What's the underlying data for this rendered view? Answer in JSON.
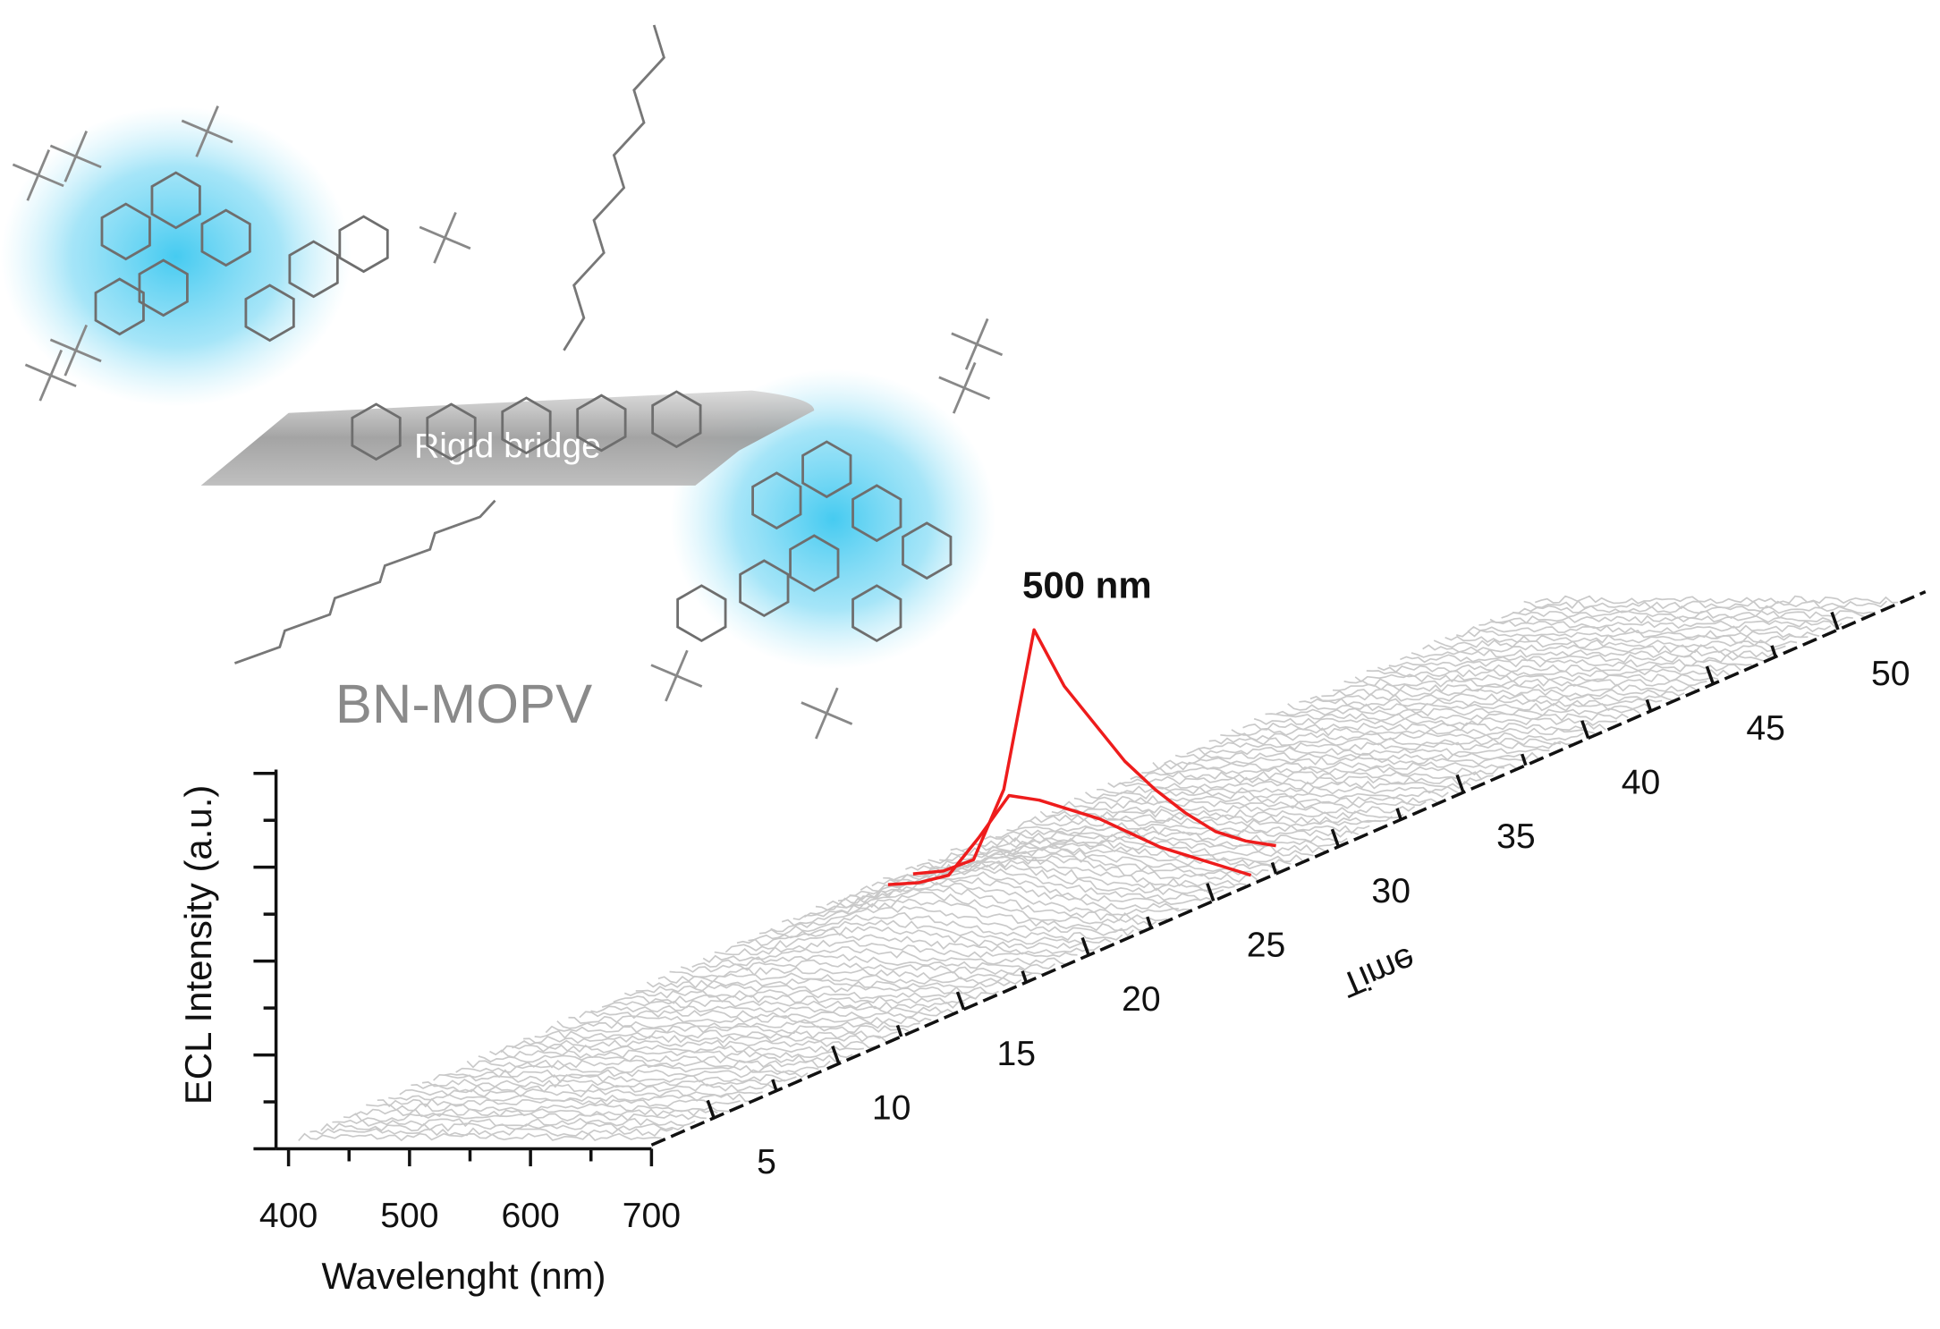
{
  "labels": {
    "molecule": "BN-MOPV",
    "bridge": "Rigid bridge"
  },
  "chart_data": {
    "type": "waterfall3d",
    "peak_label": "500 nm",
    "ylabel": "ECL Intensity (a.u.)",
    "xlabel": "Wavelenght (nm)",
    "zlabel": "Time",
    "xlim": [
      400,
      700
    ],
    "xticks": [
      400,
      500,
      600,
      700
    ],
    "ylim": [
      0,
      4
    ],
    "zlim": [
      2.5,
      53.5
    ],
    "zticks": [
      5,
      10,
      15,
      20,
      25,
      30,
      35,
      40,
      45,
      50
    ],
    "x": [
      400,
      425,
      450,
      475,
      500,
      525,
      550,
      575,
      600,
      625,
      650,
      675,
      700
    ],
    "series": [
      {
        "time": 26.5,
        "color": "#ee1c1c",
        "values": [
          0,
          0.02,
          0.1,
          0.5,
          0.95,
          0.9,
          0.8,
          0.7,
          0.55,
          0.4,
          0.3,
          0.2,
          0.1
        ]
      },
      {
        "time": 27.5,
        "color": "#ee1c1c",
        "values": [
          0,
          0.03,
          0.15,
          0.9,
          2.6,
          2.0,
          1.6,
          1.2,
          0.9,
          0.65,
          0.45,
          0.35,
          0.3
        ]
      }
    ]
  }
}
